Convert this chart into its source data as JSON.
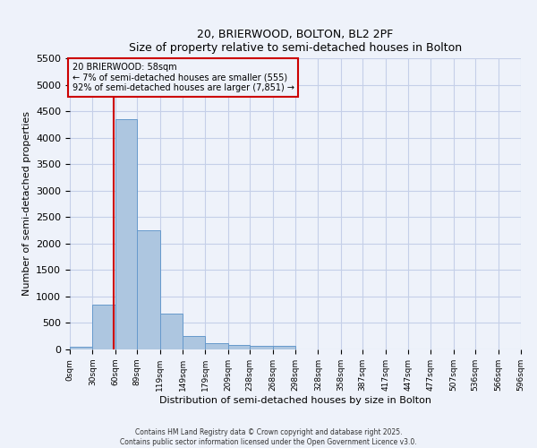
{
  "title": "20, BRIERWOOD, BOLTON, BL2 2PF",
  "subtitle": "Size of property relative to semi-detached houses in Bolton",
  "xlabel": "Distribution of semi-detached houses by size in Bolton",
  "ylabel": "Number of semi-detached properties",
  "bar_color": "#adc6e0",
  "bar_edge_color": "#6699cc",
  "background_color": "#eef2fa",
  "grid_color": "#c5cfe8",
  "annotation_text": "20 BRIERWOOD: 58sqm\n← 7% of semi-detached houses are smaller (555)\n92% of semi-detached houses are larger (7,851) →",
  "property_line_x": 58,
  "property_line_color": "#cc0000",
  "bin_edges": [
    0,
    30,
    60,
    89,
    119,
    149,
    179,
    209,
    238,
    268,
    298,
    328,
    358,
    387,
    417,
    447,
    477,
    507,
    536,
    566,
    596
  ],
  "bar_heights": [
    50,
    850,
    4350,
    2250,
    680,
    250,
    120,
    80,
    60,
    60,
    0,
    0,
    0,
    0,
    0,
    0,
    0,
    0,
    0,
    0
  ],
  "ylim": [
    0,
    5500
  ],
  "yticks": [
    0,
    500,
    1000,
    1500,
    2000,
    2500,
    3000,
    3500,
    4000,
    4500,
    5000,
    5500
  ],
  "footer_line1": "Contains HM Land Registry data © Crown copyright and database right 2025.",
  "footer_line2": "Contains public sector information licensed under the Open Government Licence v3.0."
}
